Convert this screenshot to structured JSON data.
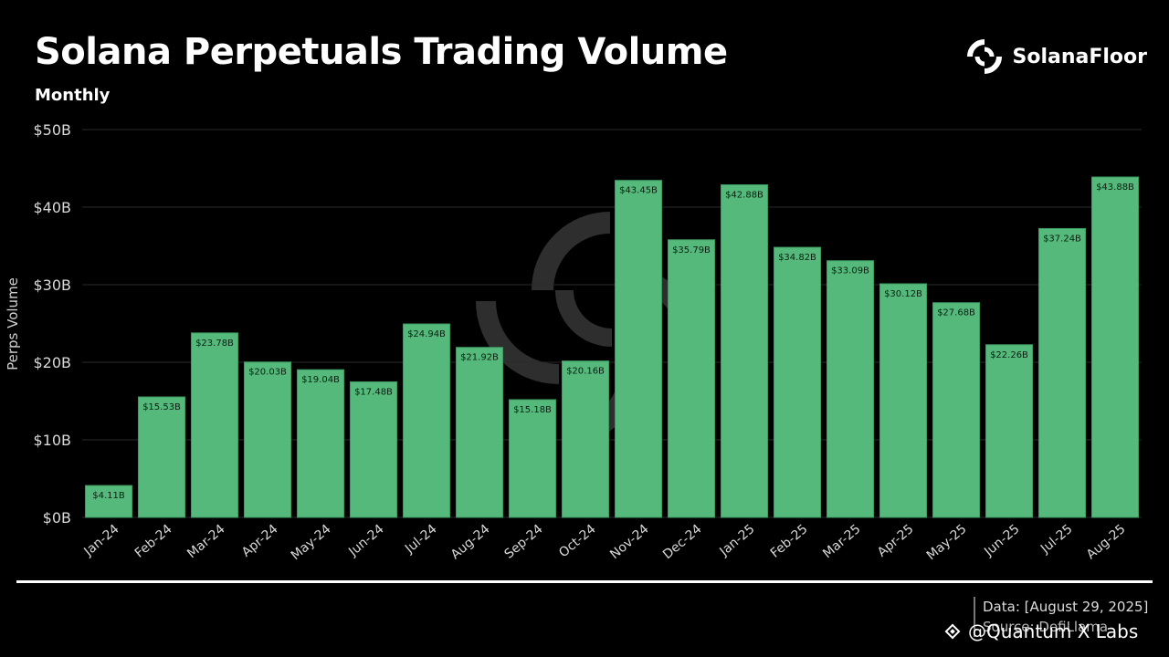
{
  "header": {
    "title": "Solana Perpetuals Trading Volume",
    "subtitle": "Monthly"
  },
  "logo": {
    "text": "SolanaFloor",
    "icon": "solanafloor-logo-icon"
  },
  "colors": {
    "bar": "#54b97a",
    "bar_stroke": "#3e9a62",
    "background": "#000000",
    "grid": "#2a2a2a",
    "text": "#ffffff",
    "tick": "#d9d9d9"
  },
  "chart_data": {
    "type": "bar",
    "title": "Solana Perpetuals Trading Volume",
    "subtitle": "Monthly",
    "xlabel": "",
    "ylabel": "Perps Volume",
    "ylim": [
      0,
      50
    ],
    "yticks": [
      "$0B",
      "$10B",
      "$20B",
      "$30B",
      "$40B",
      "$50B"
    ],
    "grid": true,
    "categories": [
      "Jan-24",
      "Feb-24",
      "Mar-24",
      "Apr-24",
      "May-24",
      "Jun-24",
      "Jul-24",
      "Aug-24",
      "Sep-24",
      "Oct-24",
      "Nov-24",
      "Dec-24",
      "Jan-25",
      "Feb-25",
      "Mar-25",
      "Apr-25",
      "May-25",
      "Jun-25",
      "Jul-25",
      "Aug-25"
    ],
    "values": [
      4.11,
      15.53,
      23.78,
      20.03,
      19.04,
      17.48,
      24.94,
      21.92,
      15.18,
      20.16,
      43.45,
      35.79,
      42.88,
      34.82,
      33.09,
      30.12,
      27.68,
      22.26,
      37.24,
      43.88
    ],
    "labels": [
      "$4.11B",
      "$15.53B",
      "$23.78B",
      "$20.03B",
      "$19.04B",
      "$17.48B",
      "$24.94B",
      "$21.92B",
      "$15.18B",
      "$20.16B",
      "$43.45B",
      "$35.79B",
      "$42.88B",
      "$34.82B",
      "$33.09B",
      "$30.12B",
      "$27.68B",
      "$22.26B",
      "$37.24B",
      "$43.88B"
    ]
  },
  "footer": {
    "data_note": "Data: [August 29, 2025]",
    "source_note": "Source: DefiLlama",
    "watermark": "@Quantum X Labs",
    "watermark_icon": "binance-diamond-icon"
  }
}
